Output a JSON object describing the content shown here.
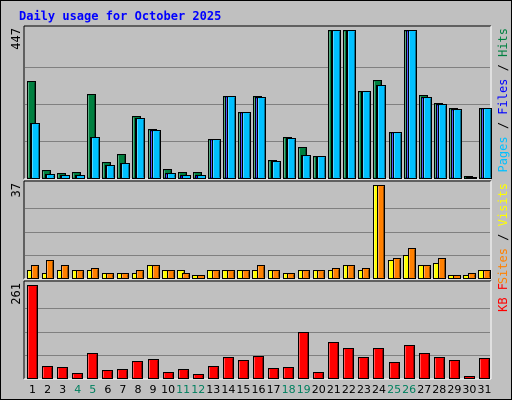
{
  "chart_data": {
    "type": "bar",
    "title": "Daily usage for October 2025",
    "categories": [
      "1",
      "2",
      "3",
      "4",
      "5",
      "6",
      "7",
      "8",
      "9",
      "10",
      "11",
      "12",
      "13",
      "14",
      "15",
      "16",
      "17",
      "18",
      "19",
      "20",
      "21",
      "22",
      "23",
      "24",
      "25",
      "26",
      "27",
      "28",
      "29",
      "30",
      "31"
    ],
    "weekend_days": [
      "4",
      "5",
      "11",
      "12",
      "18",
      "19",
      "25",
      "26"
    ],
    "panels": [
      {
        "id": "hits-files-pages",
        "max_label": "447",
        "ylim": [
          0,
          447
        ],
        "legend": [
          {
            "text": "Pages",
            "color": "#00c0ff"
          },
          {
            "text": " / ",
            "color": "#000000"
          },
          {
            "text": "Files",
            "color": "#0000ff"
          },
          {
            "text": " / ",
            "color": "#000000"
          },
          {
            "text": "Hits",
            "color": "#008040"
          }
        ],
        "series": [
          {
            "name": "Hits",
            "color": "#008040",
            "values": [
              292,
              23,
              14,
              18,
              253,
              47,
              73,
              187,
              148,
              28,
              17,
              17,
              117,
              249,
              200,
              247,
              53,
              123,
              95,
              67,
              447,
              447,
              262,
              297,
              140,
              447,
              252,
              227,
              210,
              6,
              210
            ]
          },
          {
            "name": "Files",
            "color": "#0000ff",
            "values": [
              167,
              13,
              8,
              10,
              123,
              40,
              44,
              180,
              146,
              15,
              10,
              10,
              117,
              249,
              200,
              245,
              50,
              120,
              70,
              65,
              447,
              447,
              262,
              282,
              138,
              447,
              245,
              225,
              207,
              3,
              210
            ]
          },
          {
            "name": "Pages",
            "color": "#00c0ff",
            "values": [
              167,
              13,
              8,
              10,
              123,
              40,
              44,
              180,
              146,
              15,
              10,
              10,
              117,
              249,
              200,
              245,
              50,
              120,
              70,
              65,
              447,
              447,
              262,
              282,
              138,
              447,
              245,
              225,
              207,
              3,
              210
            ]
          }
        ]
      },
      {
        "id": "visits-sites",
        "max_label": "37",
        "ylim": [
          0,
          37
        ],
        "legend": [
          {
            "text": "Sites",
            "color": "#ff8000"
          },
          {
            "text": " / ",
            "color": "#000000"
          },
          {
            "text": "Visits",
            "color": "#ffff00"
          }
        ],
        "series": [
          {
            "name": "Visits",
            "color": "#ffff00",
            "values": [
              3,
              2,
              3,
              3,
              3,
              2,
              2,
              2,
              5,
              3,
              3,
              1,
              3,
              3,
              3,
              3,
              3,
              2,
              3,
              3,
              3,
              5,
              3,
              37,
              7,
              9,
              5,
              6,
              1,
              1,
              3
            ]
          },
          {
            "name": "Sites",
            "color": "#ff8000",
            "values": [
              5,
              7,
              5,
              3,
              4,
              2,
              2,
              3,
              5,
              3,
              2,
              1,
              3,
              3,
              3,
              5,
              3,
              2,
              3,
              3,
              4,
              5,
              4,
              37,
              8,
              12,
              5,
              8,
              1,
              2,
              3
            ]
          }
        ]
      },
      {
        "id": "kbytes",
        "max_label": "261",
        "ylim": [
          0,
          261
        ],
        "legend": [
          {
            "text": "KB F",
            "color": "#ff0000"
          }
        ],
        "series": [
          {
            "name": "KB F",
            "color": "#ff0000",
            "values": [
              261,
              34,
              31,
              15,
              69,
              23,
              24,
              49,
              52,
              16,
              25,
              10,
              34,
              60,
              51,
              63,
              28,
              32,
              130,
              18,
              101,
              85,
              60,
              84,
              45,
              94,
              70,
              58,
              50,
              6,
              55
            ]
          }
        ]
      }
    ]
  }
}
